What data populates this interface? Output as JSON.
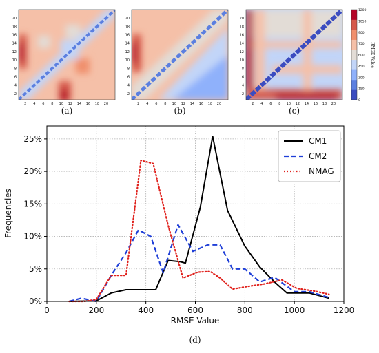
{
  "heatmap_panels": {
    "ticks": [
      "2",
      "4",
      "6",
      "8",
      "10",
      "12",
      "14",
      "16",
      "18",
      "20"
    ],
    "labels": [
      "(a)",
      "(b)",
      "(c)"
    ],
    "colorbar": {
      "label": "RMSE Value",
      "ticks": [
        "0",
        "150",
        "300",
        "450",
        "600",
        "750",
        "900",
        "1050",
        "1200"
      ],
      "colors": [
        "#3b4cc0",
        "#5b7fe0",
        "#8fb1fb",
        "#c2d5f8",
        "#e2dcd6",
        "#f5c0a8",
        "#f08f6c",
        "#d6584a",
        "#b40426"
      ]
    }
  },
  "chart_data": {
    "type": "line",
    "panel_label": "(d)",
    "xlabel": "RMSE Value",
    "ylabel": "Frequencies",
    "xlim": [
      0,
      1200
    ],
    "ylim": [
      0,
      0.27
    ],
    "xticks": [
      0,
      200,
      400,
      600,
      800,
      1000,
      1200
    ],
    "yticks": [
      0,
      0.05,
      0.1,
      0.15,
      0.2,
      0.25
    ],
    "ytick_labels": [
      "0%",
      "5%",
      "10%",
      "15%",
      "20%",
      "25%"
    ],
    "grid": true,
    "legend_position": "top-right",
    "series": [
      {
        "name": "CM1",
        "color": "#000000",
        "dash": "solid",
        "x": [
          90,
          200,
          260,
          320,
          380,
          440,
          490,
          540,
          560,
          620,
          670,
          730,
          800,
          860,
          920,
          970,
          1060,
          1140
        ],
        "y": [
          0.0,
          0.001,
          0.013,
          0.018,
          0.018,
          0.018,
          0.063,
          0.061,
          0.059,
          0.145,
          0.254,
          0.14,
          0.085,
          0.053,
          0.03,
          0.013,
          0.013,
          0.005
        ]
      },
      {
        "name": "CM2",
        "color": "#1f3fd8",
        "dash": "dashed",
        "x": [
          90,
          140,
          200,
          260,
          320,
          370,
          420,
          470,
          530,
          590,
          650,
          700,
          750,
          800,
          860,
          920,
          1000,
          1060,
          1140
        ],
        "y": [
          0.0,
          0.005,
          0.0,
          0.04,
          0.075,
          0.11,
          0.1,
          0.044,
          0.118,
          0.077,
          0.087,
          0.087,
          0.05,
          0.05,
          0.03,
          0.037,
          0.015,
          0.015,
          0.006
        ]
      },
      {
        "name": "NMAG",
        "color": "#e0201b",
        "dash": "dotted",
        "x": [
          90,
          150,
          200,
          260,
          320,
          380,
          430,
          490,
          550,
          610,
          660,
          700,
          750,
          810,
          880,
          950,
          1010,
          1080,
          1140
        ],
        "y": [
          0.0,
          0.0,
          0.003,
          0.04,
          0.04,
          0.217,
          0.212,
          0.117,
          0.036,
          0.045,
          0.046,
          0.036,
          0.019,
          0.023,
          0.027,
          0.033,
          0.02,
          0.016,
          0.011
        ]
      }
    ]
  }
}
